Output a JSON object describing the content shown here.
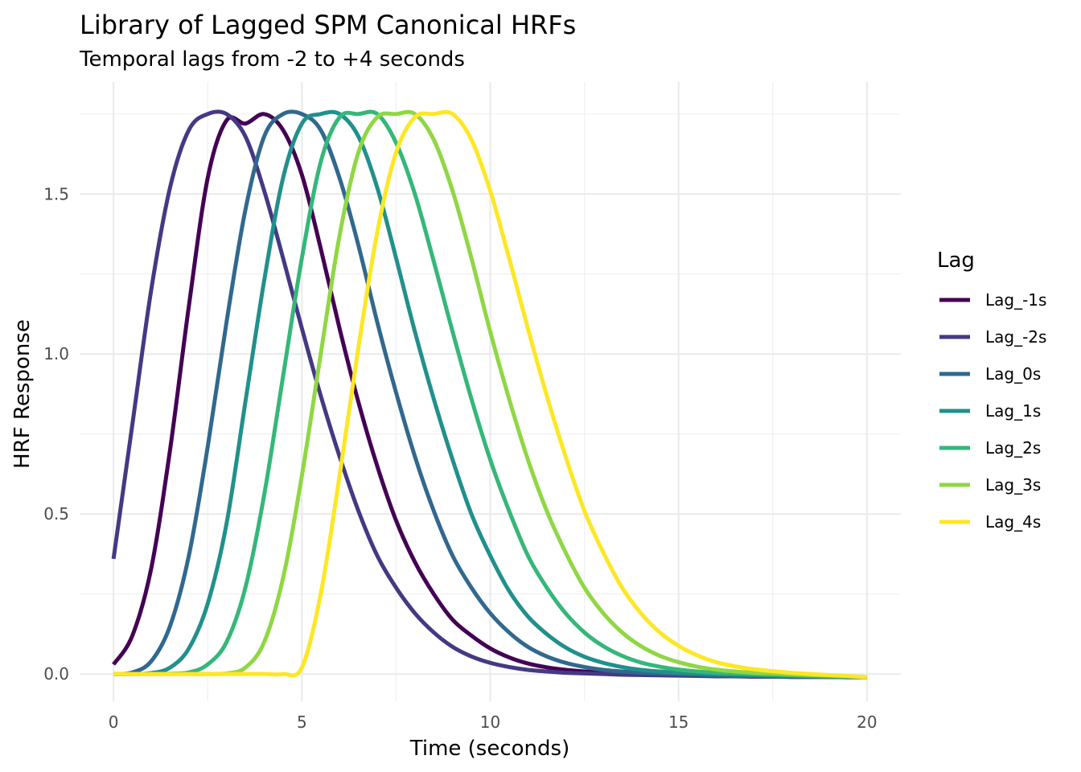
{
  "chart_data": {
    "type": "line",
    "title": "Library of Lagged SPM Canonical HRFs",
    "subtitle": "Temporal lags from -2 to +4 seconds",
    "xlabel": "Time (seconds)",
    "ylabel": "HRF Response",
    "xlim": [
      -0.9,
      20.9
    ],
    "ylim": [
      -0.085,
      1.85
    ],
    "x_ticks": [
      0,
      5,
      10,
      15,
      20
    ],
    "x_tick_labels": [
      "0",
      "5",
      "10",
      "15",
      "20"
    ],
    "y_ticks": [
      0.0,
      0.5,
      1.0,
      1.5
    ],
    "y_tick_labels": [
      "0.0",
      "0.5",
      "1.0",
      "1.5"
    ],
    "x_minor": [
      2.5,
      7.5,
      12.5,
      17.5
    ],
    "y_minor": [
      0.25,
      0.75,
      1.25,
      1.75
    ],
    "grid": true,
    "legend_title": "Lag",
    "legend_position": "right",
    "x": [
      0,
      0.5,
      1,
      1.5,
      2,
      2.5,
      3,
      3.5,
      4,
      4.5,
      5,
      5.5,
      6,
      6.5,
      7,
      7.5,
      8,
      8.5,
      9,
      9.5,
      10,
      10.5,
      11,
      11.5,
      12,
      12.5,
      13,
      13.5,
      14,
      14.5,
      15,
      15.5,
      16,
      16.5,
      17,
      17.5,
      18,
      18.5,
      19,
      19.5,
      20
    ],
    "series": [
      {
        "name": "Lag_-1s",
        "color": "#440154",
        "values": [
          0.03,
          0.12,
          0.33,
          0.7,
          1.15,
          1.55,
          1.73,
          1.72,
          1.75,
          1.7,
          1.56,
          1.33,
          1.08,
          0.85,
          0.65,
          0.48,
          0.35,
          0.25,
          0.17,
          0.12,
          0.08,
          0.052,
          0.033,
          0.021,
          0.013,
          0.008,
          0.004,
          0.002,
          0.0,
          -0.002,
          -0.004,
          -0.005,
          -0.006,
          -0.007,
          -0.008,
          -0.008,
          -0.009,
          -0.009,
          -0.009,
          -0.01,
          -0.01
        ]
      },
      {
        "name": "Lag_-2s",
        "color": "#443983",
        "values": [
          0.36,
          0.78,
          1.2,
          1.52,
          1.7,
          1.75,
          1.75,
          1.68,
          1.51,
          1.3,
          1.08,
          0.87,
          0.68,
          0.51,
          0.37,
          0.27,
          0.19,
          0.13,
          0.085,
          0.055,
          0.035,
          0.022,
          0.013,
          0.008,
          0.004,
          0.002,
          0.0,
          -0.002,
          -0.003,
          -0.004,
          -0.005,
          -0.006,
          -0.007,
          -0.007,
          -0.008,
          -0.008,
          -0.009,
          -0.009,
          -0.009,
          -0.01,
          -0.01
        ]
      },
      {
        "name": "Lag_0s",
        "color": "#31688e",
        "values": [
          0.0,
          0.005,
          0.04,
          0.15,
          0.37,
          0.71,
          1.1,
          1.45,
          1.68,
          1.75,
          1.75,
          1.7,
          1.55,
          1.34,
          1.1,
          0.88,
          0.68,
          0.51,
          0.37,
          0.27,
          0.19,
          0.13,
          0.085,
          0.055,
          0.035,
          0.022,
          0.013,
          0.008,
          0.004,
          0.002,
          0.0,
          -0.002,
          -0.004,
          -0.005,
          -0.006,
          -0.007,
          -0.008,
          -0.008,
          -0.009,
          -0.009,
          -0.01
        ]
      },
      {
        "name": "Lag_1s",
        "color": "#21908c",
        "values": [
          0.0,
          0.0,
          0.003,
          0.02,
          0.08,
          0.22,
          0.47,
          0.85,
          1.23,
          1.55,
          1.72,
          1.75,
          1.75,
          1.68,
          1.52,
          1.3,
          1.07,
          0.86,
          0.67,
          0.5,
          0.37,
          0.26,
          0.18,
          0.125,
          0.083,
          0.054,
          0.035,
          0.022,
          0.013,
          0.008,
          0.004,
          0.002,
          0.0,
          -0.002,
          -0.004,
          -0.005,
          -0.006,
          -0.007,
          -0.008,
          -0.009,
          -0.01
        ]
      },
      {
        "name": "Lag_2s",
        "color": "#35b779",
        "values": [
          0.0,
          0.0,
          0.0,
          0.001,
          0.005,
          0.03,
          0.1,
          0.27,
          0.56,
          0.93,
          1.3,
          1.6,
          1.74,
          1.75,
          1.75,
          1.66,
          1.5,
          1.29,
          1.07,
          0.86,
          0.67,
          0.51,
          0.37,
          0.27,
          0.19,
          0.13,
          0.087,
          0.057,
          0.036,
          0.023,
          0.014,
          0.008,
          0.004,
          0.002,
          0.0,
          -0.002,
          -0.004,
          -0.006,
          -0.007,
          -0.008,
          -0.01
        ]
      },
      {
        "name": "Lag_3s",
        "color": "#8fd744",
        "values": [
          0.0,
          0.0,
          0.0,
          0.0,
          0.0,
          0.0,
          0.002,
          0.02,
          0.1,
          0.3,
          0.62,
          1.0,
          1.37,
          1.63,
          1.74,
          1.75,
          1.75,
          1.67,
          1.51,
          1.3,
          1.07,
          0.86,
          0.67,
          0.51,
          0.38,
          0.27,
          0.19,
          0.13,
          0.087,
          0.057,
          0.037,
          0.023,
          0.014,
          0.008,
          0.004,
          0.002,
          -0.001,
          -0.003,
          -0.005,
          -0.007,
          -0.01
        ]
      },
      {
        "name": "Lag_4s",
        "color": "#fde725",
        "values": [
          0.0,
          0.0,
          0.0,
          0.0,
          0.0,
          0.0,
          0.0,
          0.0,
          0.0,
          0.0,
          0.02,
          0.25,
          0.62,
          1.02,
          1.38,
          1.63,
          1.74,
          1.75,
          1.75,
          1.67,
          1.51,
          1.3,
          1.08,
          0.87,
          0.68,
          0.51,
          0.38,
          0.27,
          0.19,
          0.13,
          0.088,
          0.058,
          0.037,
          0.024,
          0.015,
          0.009,
          0.004,
          0.0,
          -0.003,
          -0.006,
          -0.01
        ]
      }
    ]
  }
}
